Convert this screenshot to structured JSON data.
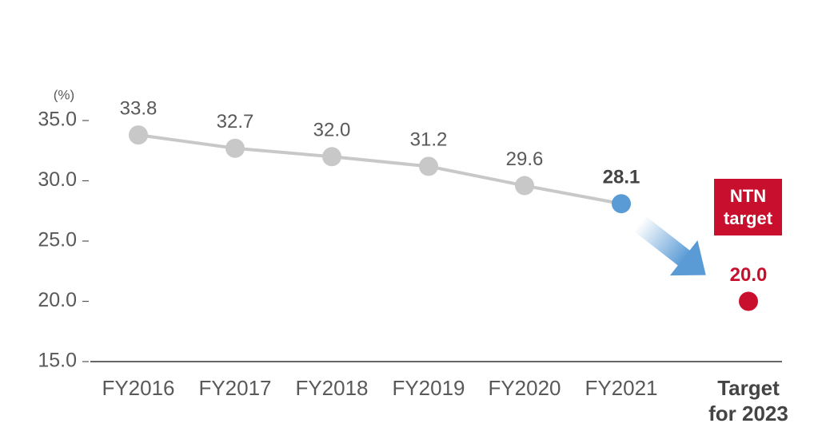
{
  "chart_data": {
    "type": "line",
    "y_unit": "(%)",
    "categories": [
      "FY2016",
      "FY2017",
      "FY2018",
      "FY2019",
      "FY2020",
      "FY2021",
      "Target for 2023"
    ],
    "series": [
      {
        "color": "#c8c8c8",
        "marker_colors": [
          "#c8c8c8",
          "#c8c8c8",
          "#c8c8c8",
          "#c8c8c8",
          "#c8c8c8",
          "#5b9bd5",
          null
        ],
        "values": [
          33.8,
          32.7,
          32.0,
          31.2,
          29.6,
          28.1,
          null
        ],
        "value_labels": [
          "33.8",
          "32.7",
          "32.0",
          "31.2",
          "29.6",
          "28.1",
          null
        ]
      },
      {
        "color": "#c8102e",
        "marker_colors": [
          null,
          null,
          null,
          null,
          null,
          null,
          "#c8102e"
        ],
        "values": [
          null,
          null,
          null,
          null,
          null,
          null,
          20.0
        ],
        "value_labels": [
          null,
          null,
          null,
          null,
          null,
          null,
          "20.0"
        ]
      }
    ],
    "annotation": "NTN target",
    "ylim": [
      15,
      35
    ],
    "yticks": [
      {
        "value": 15,
        "label": "15.0"
      },
      {
        "value": 20,
        "label": "20.0"
      },
      {
        "value": 25,
        "label": "25.0"
      },
      {
        "value": 30,
        "label": "30.0"
      },
      {
        "value": 35,
        "label": "35.0"
      }
    ]
  }
}
